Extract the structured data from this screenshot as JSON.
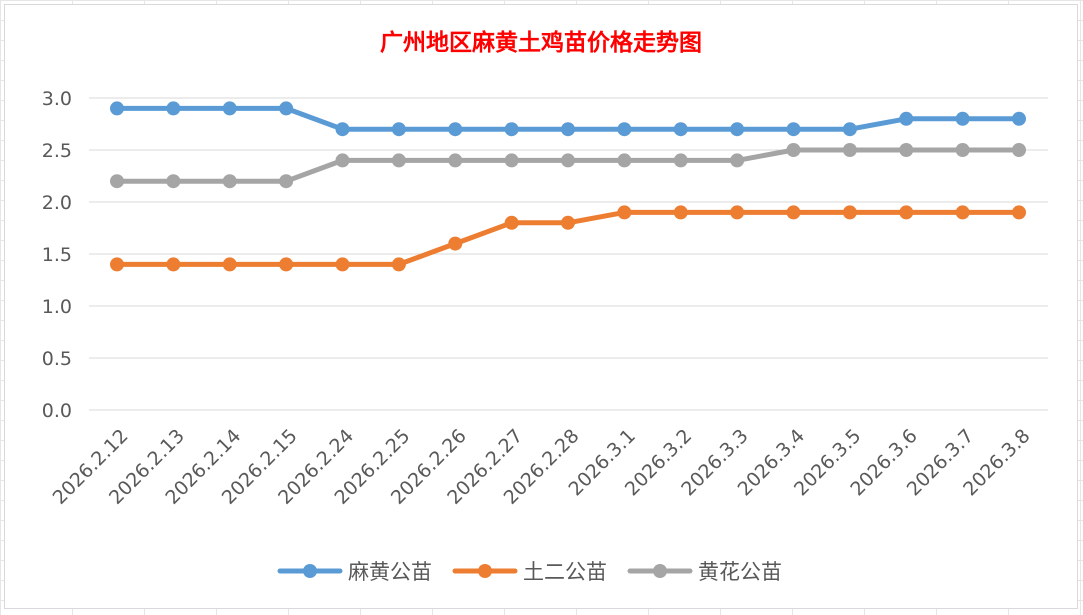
{
  "chart_data": {
    "type": "line",
    "title": "广州地区麻黄土鸡苗价格走势图",
    "title_color": "#ff0000",
    "categories": [
      "2026.2.12",
      "2026.2.13",
      "2026.2.14",
      "2026.2.15",
      "2026.2.24",
      "2026.2.25",
      "2026.2.26",
      "2026.2.27",
      "2026.2.28",
      "2026.3.1",
      "2026.3.2",
      "2026.3.3",
      "2026.3.4",
      "2026.3.5",
      "2026.3.6",
      "2026.3.7",
      "2026.3.8"
    ],
    "series": [
      {
        "name": "麻黄公苗",
        "color": "#5b9bd5",
        "values": [
          2.9,
          2.9,
          2.9,
          2.9,
          2.7,
          2.7,
          2.7,
          2.7,
          2.7,
          2.7,
          2.7,
          2.7,
          2.7,
          2.7,
          2.8,
          2.8,
          2.8
        ]
      },
      {
        "name": "土二公苗",
        "color": "#ed7d31",
        "values": [
          1.4,
          1.4,
          1.4,
          1.4,
          1.4,
          1.4,
          1.6,
          1.8,
          1.8,
          1.9,
          1.9,
          1.9,
          1.9,
          1.9,
          1.9,
          1.9,
          1.9
        ]
      },
      {
        "name": "黄花公苗",
        "color": "#a5a5a5",
        "values": [
          2.2,
          2.2,
          2.2,
          2.2,
          2.4,
          2.4,
          2.4,
          2.4,
          2.4,
          2.4,
          2.4,
          2.4,
          2.5,
          2.5,
          2.5,
          2.5,
          2.5
        ]
      }
    ],
    "ylim": [
      0,
      3.0
    ],
    "yticks": [
      "0.0",
      "0.5",
      "1.0",
      "1.5",
      "2.0",
      "2.5",
      "3.0"
    ],
    "xlabel": "",
    "ylabel": "",
    "grid": true,
    "legend_position": "bottom"
  }
}
